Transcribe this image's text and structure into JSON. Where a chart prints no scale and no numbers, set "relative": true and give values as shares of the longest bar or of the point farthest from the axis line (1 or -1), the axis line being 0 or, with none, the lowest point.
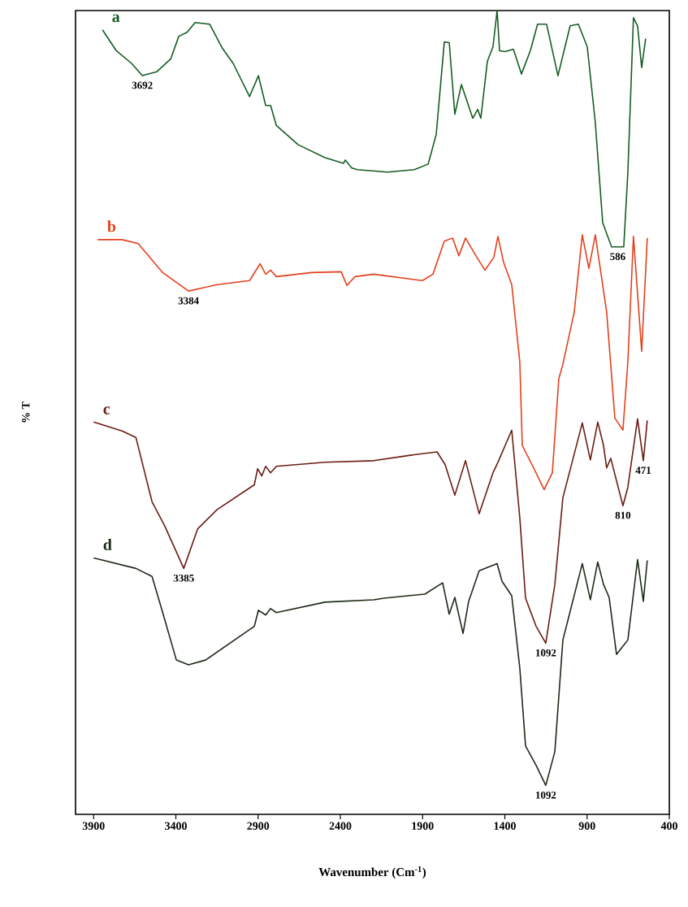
{
  "chart_data": {
    "type": "line",
    "relative": true,
    "xlabel": "Wavenumber (Cm$^{-1}$)",
    "ylabel": "% T",
    "xlim": [
      4010,
      400
    ],
    "xticks": [
      3900,
      3400,
      2900,
      2400,
      1900,
      1400,
      900,
      400
    ],
    "grid": false,
    "legend": false,
    "line_style": "solid",
    "marker": "none",
    "series": [
      {
        "name": "a",
        "color": "#145c23",
        "x": [
          3846,
          3762,
          3668,
          3604,
          3515,
          3431,
          3382,
          3332,
          3283,
          3194,
          3120,
          3051,
          2952,
          2898,
          2854,
          2824,
          2789,
          2656,
          2493,
          2380,
          2370,
          2330,
          2296,
          2113,
          1950,
          1866,
          1817,
          1768,
          1738,
          1704,
          1664,
          1595,
          1565,
          1546,
          1506,
          1472,
          1447,
          1432,
          1398,
          1348,
          1299,
          1245,
          1201,
          1146,
          1077,
          1003,
          953,
          899,
          850,
          805,
          751,
          677,
          652,
          618,
          593,
          568,
          544
        ],
        "values": [
          0.976,
          0.95,
          0.934,
          0.919,
          0.924,
          0.94,
          0.968,
          0.973,
          0.985,
          0.983,
          0.954,
          0.934,
          0.893,
          0.919,
          0.882,
          0.882,
          0.857,
          0.833,
          0.817,
          0.81,
          0.814,
          0.804,
          0.802,
          0.799,
          0.802,
          0.809,
          0.846,
          0.961,
          0.96,
          0.871,
          0.908,
          0.866,
          0.877,
          0.866,
          0.937,
          0.955,
          1,
          0.95,
          0.949,
          0.952,
          0.921,
          0.95,
          0.983,
          0.983,
          0.919,
          0.981,
          0.983,
          0.955,
          0.861,
          0.736,
          0.706,
          0.706,
          0.799,
          0.991,
          0.981,
          0.929,
          0.965
        ]
      },
      {
        "name": "b",
        "color": "#e4401c",
        "x": [
          3875,
          3811,
          3727,
          3629,
          3480,
          3323,
          3150,
          2952,
          2888,
          2854,
          2824,
          2789,
          2577,
          2395,
          2360,
          2311,
          2197,
          1901,
          1837,
          1768,
          1718,
          1679,
          1639,
          1570,
          1521,
          1467,
          1442,
          1408,
          1358,
          1309,
          1294,
          1225,
          1161,
          1111,
          1072,
          1047,
          978,
          929,
          889,
          850,
          781,
          731,
          682,
          652,
          618,
          568,
          534
        ],
        "values": [
          0.715,
          0.715,
          0.715,
          0.71,
          0.674,
          0.651,
          0.659,
          0.664,
          0.685,
          0.672,
          0.677,
          0.669,
          0.674,
          0.675,
          0.658,
          0.669,
          0.672,
          0.664,
          0.672,
          0.713,
          0.717,
          0.695,
          0.717,
          0.693,
          0.677,
          0.693,
          0.719,
          0.687,
          0.659,
          0.563,
          0.459,
          0.431,
          0.404,
          0.425,
          0.542,
          0.56,
          0.625,
          0.721,
          0.679,
          0.721,
          0.625,
          0.493,
          0.478,
          0.563,
          0.719,
          0.576,
          0.717
        ]
      },
      {
        "name": "c",
        "color": "#6a1c12",
        "x": [
          3900,
          3727,
          3643,
          3545,
          3466,
          3352,
          3268,
          3150,
          2923,
          2903,
          2878,
          2854,
          2824,
          2789,
          2493,
          2197,
          1965,
          1812,
          1763,
          1704,
          1639,
          1556,
          1472,
          1442,
          1358,
          1309,
          1274,
          1210,
          1151,
          1096,
          1047,
          929,
          880,
          835,
          800,
          781,
          756,
          682,
          652,
          593,
          558,
          534
        ],
        "values": [
          0.488,
          0.477,
          0.469,
          0.389,
          0.358,
          0.306,
          0.355,
          0.379,
          0.41,
          0.43,
          0.421,
          0.433,
          0.425,
          0.433,
          0.438,
          0.44,
          0.447,
          0.451,
          0.435,
          0.397,
          0.44,
          0.374,
          0.425,
          0.438,
          0.478,
          0.369,
          0.269,
          0.234,
          0.213,
          0.286,
          0.394,
          0.487,
          0.441,
          0.488,
          0.459,
          0.431,
          0.443,
          0.384,
          0.407,
          0.492,
          0.44,
          0.49
        ]
      },
      {
        "name": "d",
        "color": "#1c2a16",
        "x": [
          3900,
          3643,
          3545,
          3480,
          3397,
          3323,
          3219,
          2923,
          2898,
          2854,
          2824,
          2789,
          2493,
          2197,
          2133,
          1886,
          1778,
          1738,
          1704,
          1654,
          1620,
          1556,
          1447,
          1417,
          1358,
          1309,
          1274,
          1210,
          1151,
          1096,
          1047,
          929,
          880,
          835,
          800,
          766,
          721,
          652,
          593,
          558,
          534
        ],
        "values": [
          0.319,
          0.306,
          0.296,
          0.251,
          0.192,
          0.186,
          0.192,
          0.234,
          0.254,
          0.248,
          0.256,
          0.251,
          0.264,
          0.267,
          0.269,
          0.274,
          0.288,
          0.249,
          0.27,
          0.225,
          0.265,
          0.303,
          0.312,
          0.29,
          0.272,
          0.182,
          0.085,
          0.061,
          0.036,
          0.078,
          0.217,
          0.312,
          0.267,
          0.314,
          0.286,
          0.27,
          0.199,
          0.217,
          0.317,
          0.265,
          0.316
        ]
      }
    ],
    "annotations": [
      {
        "text": "3692",
        "x": 3604,
        "y": 0.919
      },
      {
        "text": "586",
        "x": 714,
        "y": 0.706
      },
      {
        "text": "3384",
        "x": 3323,
        "y": 0.651
      },
      {
        "text": "3385",
        "x": 3352,
        "y": 0.306
      },
      {
        "text": "1092",
        "x": 1151,
        "y": 0.213
      },
      {
        "text": "810",
        "x": 682,
        "y": 0.384
      },
      {
        "text": "471",
        "x": 558,
        "y": 0.44
      },
      {
        "text": "1092",
        "x": 1151,
        "y": 0.036
      }
    ]
  }
}
